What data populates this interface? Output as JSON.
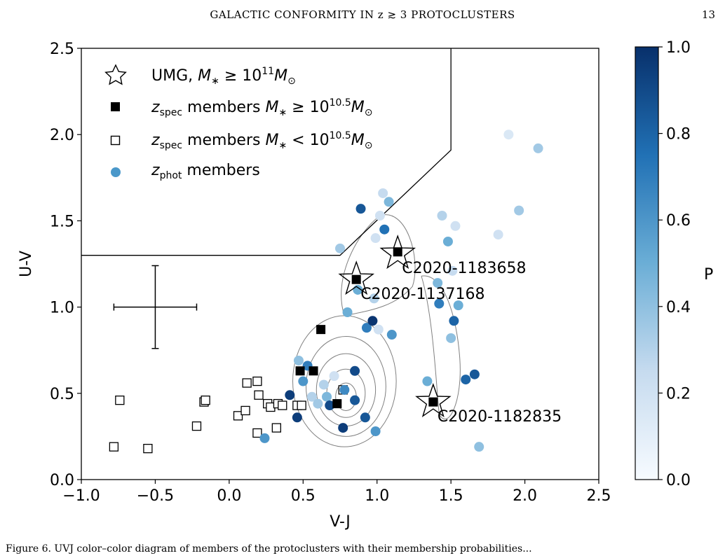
{
  "page": {
    "running_head": "GALACTIC CONFORMITY IN z ≳ 3 PROTOCLUSTERS",
    "page_number": "13",
    "caption_fragment": "Figure 6. UVJ color–color diagram of members of the protoclusters with their membership probabilities..."
  },
  "chart_data": {
    "type": "scatter",
    "xlabel": "V-J",
    "ylabel": "U-V",
    "xlim": [
      -1.0,
      2.5
    ],
    "ylim": [
      0.0,
      2.5
    ],
    "xticks": [
      "−1.0",
      "−0.5",
      "0.0",
      "0.5",
      "1.0",
      "1.5",
      "2.0",
      "2.5"
    ],
    "yticks": [
      "0.0",
      "0.5",
      "1.0",
      "1.5",
      "2.0",
      "2.5"
    ],
    "grid": false,
    "legend_placement": "top-left",
    "legend": {
      "umg": {
        "pre": "UMG, ",
        "math": "M",
        "sub": "∗",
        "mid": " ≥ 10",
        "sup": "11",
        "tail": "M",
        "tailsub": "⊙"
      },
      "spec_high": {
        "pre": "z",
        "sub": "spec",
        "mid": " members ",
        "math": "M",
        "msub": "∗",
        "rel": " ≥ 10",
        "sup": "10.5",
        "tail": "M",
        "tailsub": "⊙"
      },
      "spec_low": {
        "pre": "z",
        "sub": "spec",
        "mid": " members ",
        "math": "M",
        "msub": "∗",
        "rel": " < 10",
        "sup": "10.5",
        "tail": "M",
        "tailsub": "⊙"
      },
      "phot": {
        "pre": "z",
        "sub": "phot",
        "mid": " members"
      }
    },
    "quiescent_boundary": [
      [
        -1.0,
        1.3
      ],
      [
        0.75,
        1.3
      ],
      [
        1.5,
        1.91
      ],
      [
        1.5,
        2.5
      ]
    ],
    "error_bar": {
      "x": -0.5,
      "y": 1.0,
      "xerr": 0.28,
      "yerr": 0.24
    },
    "colorbar": {
      "label": "P",
      "range": [
        0.0,
        1.0
      ],
      "ticks": [
        "0.0",
        "0.2",
        "0.4",
        "0.6",
        "0.8",
        "1.0"
      ]
    },
    "umg": [
      {
        "name": "C2020-1183658",
        "x": 1.14,
        "y": 1.31
      },
      {
        "name": "C2020-1137168",
        "x": 0.86,
        "y": 1.16
      },
      {
        "name": "C2020-1182835",
        "x": 1.38,
        "y": 0.45
      }
    ],
    "spec_high": [
      {
        "x": 1.14,
        "y": 1.32
      },
      {
        "x": 0.86,
        "y": 1.16
      },
      {
        "x": 0.62,
        "y": 0.87
      },
      {
        "x": 0.48,
        "y": 0.63
      },
      {
        "x": 0.57,
        "y": 0.63
      },
      {
        "x": 0.73,
        "y": 0.44
      },
      {
        "x": 1.38,
        "y": 0.45
      }
    ],
    "spec_low": [
      {
        "x": -0.78,
        "y": 0.19
      },
      {
        "x": -0.55,
        "y": 0.18
      },
      {
        "x": -0.74,
        "y": 0.46
      },
      {
        "x": -0.22,
        "y": 0.31
      },
      {
        "x": -0.17,
        "y": 0.45
      },
      {
        "x": -0.16,
        "y": 0.46
      },
      {
        "x": 0.06,
        "y": 0.37
      },
      {
        "x": 0.11,
        "y": 0.4
      },
      {
        "x": 0.12,
        "y": 0.56
      },
      {
        "x": 0.19,
        "y": 0.57
      },
      {
        "x": 0.2,
        "y": 0.49
      },
      {
        "x": 0.19,
        "y": 0.27
      },
      {
        "x": 0.26,
        "y": 0.44
      },
      {
        "x": 0.28,
        "y": 0.42
      },
      {
        "x": 0.32,
        "y": 0.3
      },
      {
        "x": 0.33,
        "y": 0.44
      },
      {
        "x": 0.36,
        "y": 0.43
      },
      {
        "x": 0.46,
        "y": 0.43
      },
      {
        "x": 0.49,
        "y": 0.43
      },
      {
        "x": 0.77,
        "y": 0.52
      }
    ],
    "phot": [
      {
        "x": 0.24,
        "y": 0.24,
        "p": 0.6
      },
      {
        "x": 0.41,
        "y": 0.49,
        "p": 0.95
      },
      {
        "x": 0.46,
        "y": 0.36,
        "p": 0.95
      },
      {
        "x": 0.47,
        "y": 0.69,
        "p": 0.4
      },
      {
        "x": 0.5,
        "y": 0.57,
        "p": 0.6
      },
      {
        "x": 0.53,
        "y": 0.66,
        "p": 0.7
      },
      {
        "x": 0.56,
        "y": 0.48,
        "p": 0.3
      },
      {
        "x": 0.6,
        "y": 0.44,
        "p": 0.35
      },
      {
        "x": 0.64,
        "y": 0.55,
        "p": 0.3
      },
      {
        "x": 0.66,
        "y": 0.48,
        "p": 0.45
      },
      {
        "x": 0.68,
        "y": 0.43,
        "p": 0.9
      },
      {
        "x": 0.71,
        "y": 0.6,
        "p": 0.2
      },
      {
        "x": 0.75,
        "y": 1.34,
        "p": 0.35
      },
      {
        "x": 0.77,
        "y": 0.3,
        "p": 0.95
      },
      {
        "x": 0.78,
        "y": 0.52,
        "p": 0.65
      },
      {
        "x": 0.8,
        "y": 0.97,
        "p": 0.5
      },
      {
        "x": 0.85,
        "y": 0.63,
        "p": 0.9
      },
      {
        "x": 0.85,
        "y": 0.46,
        "p": 0.85
      },
      {
        "x": 0.87,
        "y": 1.1,
        "p": 0.5
      },
      {
        "x": 0.89,
        "y": 1.57,
        "p": 0.85
      },
      {
        "x": 0.92,
        "y": 0.36,
        "p": 0.85
      },
      {
        "x": 0.93,
        "y": 0.88,
        "p": 0.7
      },
      {
        "x": 0.97,
        "y": 0.92,
        "p": 0.98
      },
      {
        "x": 0.98,
        "y": 1.05,
        "p": 0.3
      },
      {
        "x": 0.99,
        "y": 0.28,
        "p": 0.6
      },
      {
        "x": 0.99,
        "y": 1.4,
        "p": 0.2
      },
      {
        "x": 1.01,
        "y": 0.87,
        "p": 0.2
      },
      {
        "x": 1.02,
        "y": 1.53,
        "p": 0.2
      },
      {
        "x": 1.04,
        "y": 1.66,
        "p": 0.25
      },
      {
        "x": 1.05,
        "y": 1.45,
        "p": 0.75
      },
      {
        "x": 1.08,
        "y": 1.61,
        "p": 0.45
      },
      {
        "x": 1.1,
        "y": 0.84,
        "p": 0.6
      },
      {
        "x": 1.34,
        "y": 0.57,
        "p": 0.5
      },
      {
        "x": 1.41,
        "y": 1.14,
        "p": 0.45
      },
      {
        "x": 1.42,
        "y": 1.02,
        "p": 0.7
      },
      {
        "x": 1.44,
        "y": 1.53,
        "p": 0.3
      },
      {
        "x": 1.48,
        "y": 1.38,
        "p": 0.5
      },
      {
        "x": 1.5,
        "y": 0.82,
        "p": 0.4
      },
      {
        "x": 1.51,
        "y": 1.21,
        "p": 0.25
      },
      {
        "x": 1.52,
        "y": 0.92,
        "p": 0.8
      },
      {
        "x": 1.53,
        "y": 1.47,
        "p": 0.2
      },
      {
        "x": 1.55,
        "y": 1.01,
        "p": 0.5
      },
      {
        "x": 1.6,
        "y": 0.58,
        "p": 0.8
      },
      {
        "x": 1.66,
        "y": 0.61,
        "p": 0.85
      },
      {
        "x": 1.69,
        "y": 0.19,
        "p": 0.4
      },
      {
        "x": 1.82,
        "y": 1.42,
        "p": 0.2
      },
      {
        "x": 1.89,
        "y": 2.0,
        "p": 0.15
      },
      {
        "x": 1.96,
        "y": 1.56,
        "p": 0.35
      },
      {
        "x": 2.09,
        "y": 1.92,
        "p": 0.35
      }
    ],
    "contours": [
      {
        "cx": 0.79,
        "cy": 0.48,
        "rx": 0.07,
        "ry": 0.08
      },
      {
        "cx": 0.79,
        "cy": 0.5,
        "rx": 0.13,
        "ry": 0.14
      },
      {
        "cx": 0.79,
        "cy": 0.52,
        "rx": 0.2,
        "ry": 0.21
      },
      {
        "cx": 0.79,
        "cy": 0.54,
        "rx": 0.27,
        "ry": 0.29
      },
      {
        "cx": 0.78,
        "cy": 0.57,
        "rx": 0.35,
        "ry": 0.38
      }
    ]
  }
}
